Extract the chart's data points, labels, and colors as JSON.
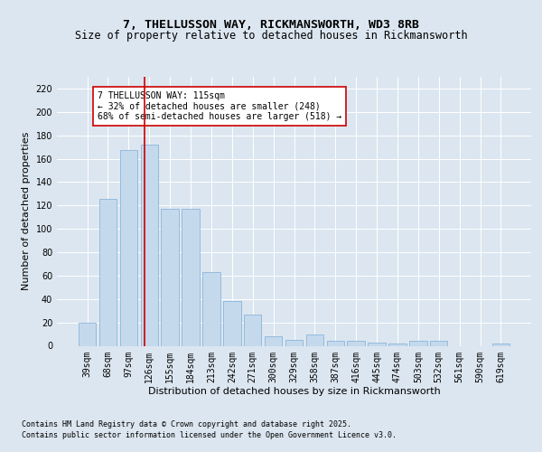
{
  "title_line1": "7, THELLUSSON WAY, RICKMANSWORTH, WD3 8RB",
  "title_line2": "Size of property relative to detached houses in Rickmansworth",
  "xlabel": "Distribution of detached houses by size in Rickmansworth",
  "ylabel": "Number of detached properties",
  "categories": [
    "39sqm",
    "68sqm",
    "97sqm",
    "126sqm",
    "155sqm",
    "184sqm",
    "213sqm",
    "242sqm",
    "271sqm",
    "300sqm",
    "329sqm",
    "358sqm",
    "387sqm",
    "416sqm",
    "445sqm",
    "474sqm",
    "503sqm",
    "532sqm",
    "561sqm",
    "590sqm",
    "619sqm"
  ],
  "values": [
    20,
    126,
    167,
    172,
    117,
    117,
    63,
    38,
    27,
    8,
    5,
    10,
    4,
    4,
    3,
    2,
    4,
    4,
    0,
    0,
    2
  ],
  "bar_color": "#c5d9ed",
  "bar_edge_color": "#7aadd6",
  "ylim": [
    0,
    230
  ],
  "yticks": [
    0,
    20,
    40,
    60,
    80,
    100,
    120,
    140,
    160,
    180,
    200,
    220
  ],
  "vline_x": 2.75,
  "vline_color": "#cc0000",
  "annotation_text": "7 THELLUSSON WAY: 115sqm\n← 32% of detached houses are smaller (248)\n68% of semi-detached houses are larger (518) →",
  "box_edge_color": "#cc0000",
  "footnote_line1": "Contains HM Land Registry data © Crown copyright and database right 2025.",
  "footnote_line2": "Contains public sector information licensed under the Open Government Licence v3.0.",
  "bg_color": "#dce6f0",
  "plot_bg_color": "#dce6f0",
  "title_fontsize": 9.5,
  "subtitle_fontsize": 8.5,
  "axis_label_fontsize": 8,
  "tick_fontsize": 7,
  "annotation_fontsize": 7,
  "footnote_fontsize": 6
}
